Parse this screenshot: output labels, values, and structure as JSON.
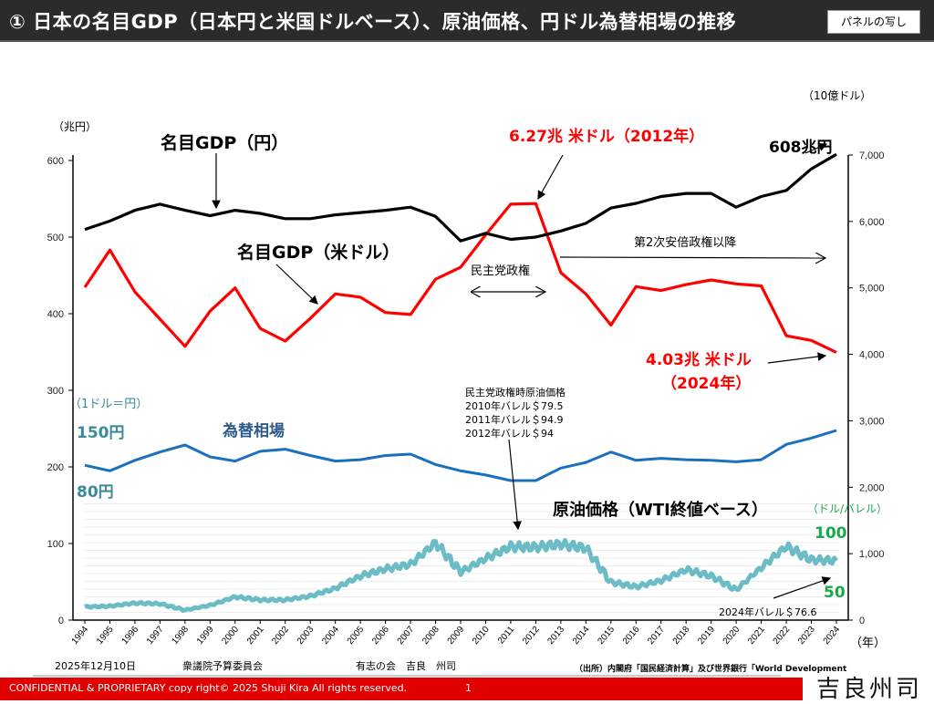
{
  "header": {
    "title": "① 日本の名目GDP（日本円と米国ドルベース）、原油価格、円ドル為替相場の推移",
    "panel_badge": "パネルの写し"
  },
  "footer": {
    "date": "2025年12月10日",
    "committee": "衆議院予算委員会",
    "speaker": "有志の会　吉良　州司",
    "source": "（出所）内閣府「国民経済計算」及び世界銀行「World Development",
    "confidential": "CONFIDENTIAL & PROPRIETARY  copy right© 2025 Shuji Kira All rights reserved.",
    "page_number": "1",
    "signature": "吉良州司"
  },
  "colors": {
    "gdp_yen": "#000000",
    "gdp_usd": "#ff0000",
    "fx": "#1a6fbf",
    "oil": "#6bbcc4",
    "fx_label": "#3a8a9a",
    "oil_unit": "#1aa84a",
    "footer_bar": "#e00000"
  },
  "chart_data": {
    "type": "line",
    "title": "日本の名目GDP（日本円と米国ドルベース）、原油価格、円ドル為替相場の推移",
    "x": [
      1994,
      1995,
      1996,
      1997,
      1998,
      1999,
      2000,
      2001,
      2002,
      2003,
      2004,
      2005,
      2006,
      2007,
      2008,
      2009,
      2010,
      2011,
      2012,
      2013,
      2014,
      2015,
      2016,
      2017,
      2018,
      2019,
      2020,
      2021,
      2022,
      2023,
      2024
    ],
    "xlabel": "（年）",
    "left_axis": {
      "label": "（兆円）",
      "ticks": [
        "0",
        "100",
        "200",
        "300",
        "400",
        "500",
        "600"
      ],
      "range": [
        0,
        600
      ]
    },
    "right_axis": {
      "label": "（10億ドル）",
      "ticks": [
        "0",
        "1,000",
        "2,000",
        "3,000",
        "4,000",
        "5,000",
        "6,000",
        "7,000"
      ],
      "range": [
        0,
        7000
      ]
    },
    "grid": false,
    "series": [
      {
        "name": "名目GDP（円）",
        "axis": "left",
        "unit": "兆円",
        "values": [
          510,
          521,
          535,
          543,
          535,
          528,
          535,
          531,
          524,
          524,
          529,
          532,
          535,
          539,
          527,
          495,
          505,
          497,
          500,
          508,
          518,
          538,
          544,
          553,
          557,
          557,
          539,
          553,
          561,
          589,
          608
        ]
      },
      {
        "name": "名目GDP（米ドル）",
        "axis": "right",
        "unit": "10億ドル",
        "values": [
          5010,
          5570,
          4940,
          4530,
          4120,
          4650,
          5000,
          4390,
          4200,
          4540,
          4910,
          4860,
          4630,
          4600,
          5130,
          5310,
          5800,
          6260,
          6270,
          5230,
          4910,
          4440,
          5020,
          4960,
          5050,
          5120,
          5060,
          5030,
          4280,
          4210,
          4030
        ]
      },
      {
        "name": "為替相場",
        "axis": "fx",
        "unit": "円/ドル",
        "values": [
          102,
          94,
          109,
          121,
          131,
          114,
          108,
          122,
          125,
          116,
          108,
          110,
          116,
          118,
          103,
          94,
          88,
          80,
          80,
          98,
          106,
          121,
          109,
          112,
          110,
          109,
          107,
          110,
          132,
          141,
          152
        ]
      },
      {
        "name": "原油価格（WTI終値ベース）",
        "axis": "oil",
        "unit": "ドル/バレル",
        "values": [
          17,
          18,
          22,
          21,
          13,
          19,
          30,
          26,
          26,
          31,
          41,
          57,
          66,
          72,
          100,
          62,
          79.5,
          94.9,
          94,
          98,
          93,
          49,
          43,
          51,
          65,
          57,
          39,
          68,
          95,
          78,
          76.6
        ]
      }
    ],
    "annotations": {
      "gdp_yen_label": "名目GDP（円）",
      "gdp_usd_label": "名目GDP（米ドル）",
      "peak_usd": "6.27兆 米ドル（2012年）",
      "latest_yen": "608兆円",
      "latest_usd_line1": "4.03兆 米ドル",
      "latest_usd_line2": "（2024年）",
      "dpj_period": "民主党政権",
      "abe_period": "第2次安倍政権以降",
      "fx_unit": "（1ドル＝円）",
      "fx_150": "150円",
      "fx_80": "80円",
      "fx_label": "為替相場",
      "oil_title": "原油価格（WTI終値ベース）",
      "oil_unit": "（ドル/バレル）",
      "oil_100": "100",
      "oil_50": "50",
      "oil_dpj_title": "民主党政権時原油価格",
      "oil_2010": "2010年バレル＄79.5",
      "oil_2011": "2011年バレル＄94.9",
      "oil_2012": "2012年バレル＄94",
      "oil_2024": "2024年バレル＄76.6"
    }
  }
}
